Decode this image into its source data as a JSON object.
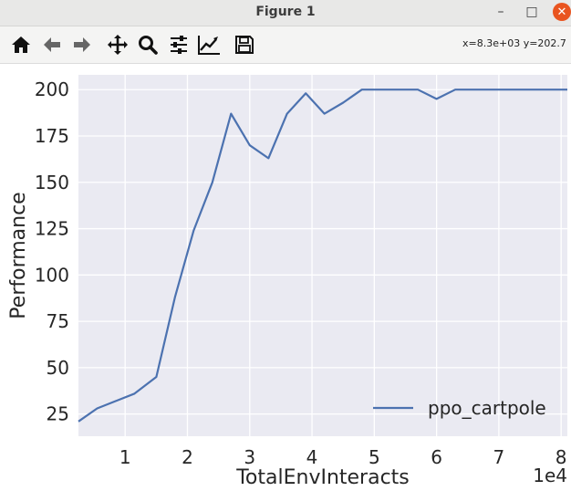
{
  "window": {
    "title": "Figure 1",
    "minimize_glyph": "–",
    "maximize_glyph": "□",
    "close_glyph": "✕"
  },
  "toolbar": {
    "buttons": [
      "home-icon",
      "back-arrow-icon",
      "forward-arrow-icon",
      "pan-move-icon",
      "zoom-magnifier-icon",
      "subplots-sliders-icon",
      "edit-axis-icon",
      "save-floppy-icon"
    ],
    "coordinates": "x=8.3e+03 y=202.7"
  },
  "chart_data": {
    "type": "line",
    "xlabel": "TotalEnvInteracts",
    "ylabel": "Performance",
    "x_multiplier_label": "1e4",
    "xlim": [
      0.25,
      8.1
    ],
    "ylim": [
      13,
      208
    ],
    "xticks": [
      1,
      2,
      3,
      4,
      5,
      6,
      7,
      8
    ],
    "yticks": [
      25,
      50,
      75,
      100,
      125,
      150,
      175,
      200
    ],
    "grid": true,
    "legend_position": "lower right",
    "series": [
      {
        "name": "ppo_cartpole",
        "color": "#4c72b0",
        "x": [
          0.25,
          0.55,
          0.85,
          1.15,
          1.5,
          1.8,
          2.1,
          2.4,
          2.7,
          3.0,
          3.3,
          3.6,
          3.9,
          4.2,
          4.5,
          4.8,
          5.1,
          5.4,
          5.7,
          6.0,
          6.3,
          6.6,
          6.9,
          7.2,
          7.5,
          7.8,
          8.1
        ],
        "y": [
          21,
          28,
          32,
          36,
          45,
          88,
          124,
          150,
          187,
          170,
          163,
          187,
          198,
          187,
          193,
          200,
          200,
          200,
          200,
          195,
          200,
          200,
          200,
          200,
          200,
          200,
          200
        ]
      }
    ]
  },
  "colors": {
    "plot_background": "#eaeaf2",
    "grid": "#ffffff",
    "line": "#4c72b0",
    "text": "#262626"
  }
}
